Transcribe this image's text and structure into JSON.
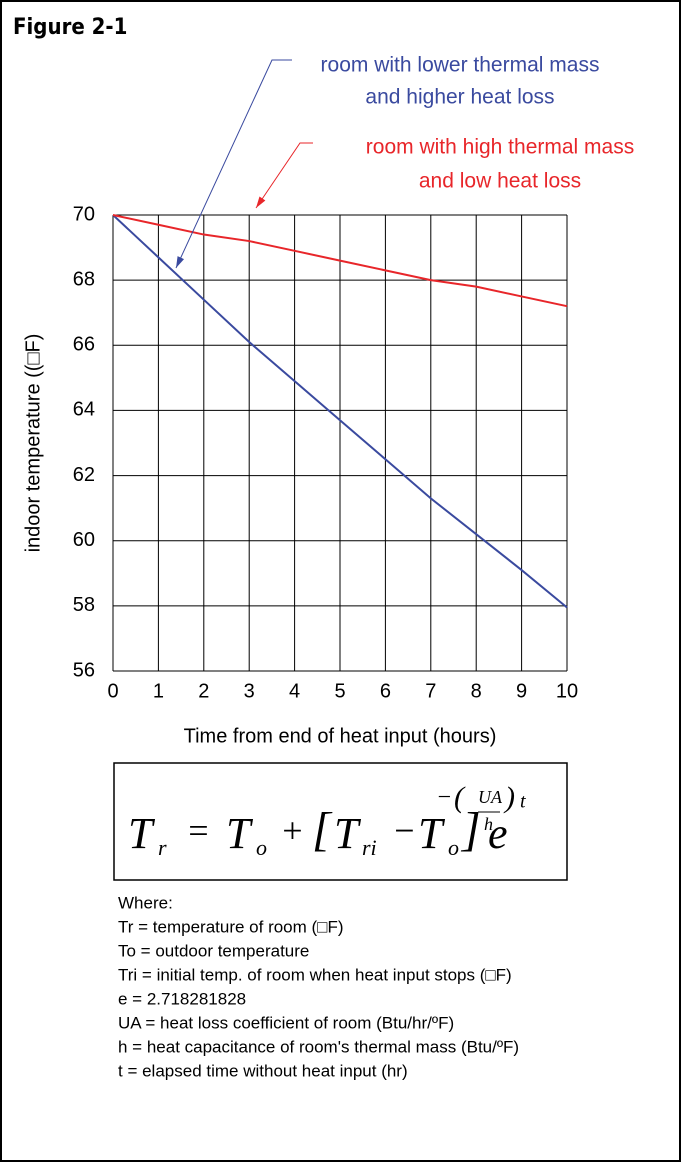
{
  "figure_label": "Figure 2-1",
  "chart_data": {
    "type": "line",
    "ylabel": "indoor temperature ((□F)",
    "xlabel": "Time from end of heat input (hours)",
    "x": [
      0,
      1,
      2,
      3,
      4,
      5,
      6,
      7,
      8,
      9,
      10
    ],
    "series": [
      {
        "name": "room with lower thermal mass and higher heat loss",
        "color": "#3a4a9f",
        "values": [
          70,
          68.7,
          67.4,
          66.1,
          64.9,
          63.7,
          62.5,
          61.3,
          60.2,
          59.1,
          57.95
        ]
      },
      {
        "name": "room with high thermal mass and low heat loss",
        "color": "#e8262a",
        "values": [
          70,
          69.7,
          69.4,
          69.2,
          68.9,
          68.6,
          68.3,
          68.0,
          67.8,
          67.5,
          67.2
        ]
      }
    ],
    "annotations": [
      {
        "lines": [
          "room with lower thermal mass",
          "and higher heat loss"
        ],
        "color": "#3a4a9f"
      },
      {
        "lines": [
          "room with high thermal mass",
          "and low heat loss"
        ],
        "color": "#e8262a"
      }
    ],
    "xlim": [
      0,
      10
    ],
    "xticks": [
      0,
      1,
      2,
      3,
      4,
      5,
      6,
      7,
      8,
      9,
      10
    ],
    "ylim": [
      56,
      70
    ],
    "yticks": [
      56,
      58,
      60,
      62,
      64,
      66,
      68,
      70
    ],
    "grid": true
  },
  "equation": [
    "T",
    "r",
    "=",
    "T",
    "o",
    "+",
    "[",
    "T",
    "ri",
    "−",
    "T",
    "o",
    "]",
    "e",
    "−",
    "(",
    "UA",
    "h",
    ")",
    "t"
  ],
  "where": [
    "Where:",
    "Tr = temperature of room (□F)",
    "To = outdoor temperature",
    "Tri = initial temp. of room when heat input stops (□F)",
    "e = 2.718281828",
    "UA = heat loss coefficient of room (Btu/hr/ºF)",
    "h = heat capacitance of room's thermal mass (Btu/ºF)",
    "t = elapsed time without heat input (hr)"
  ]
}
